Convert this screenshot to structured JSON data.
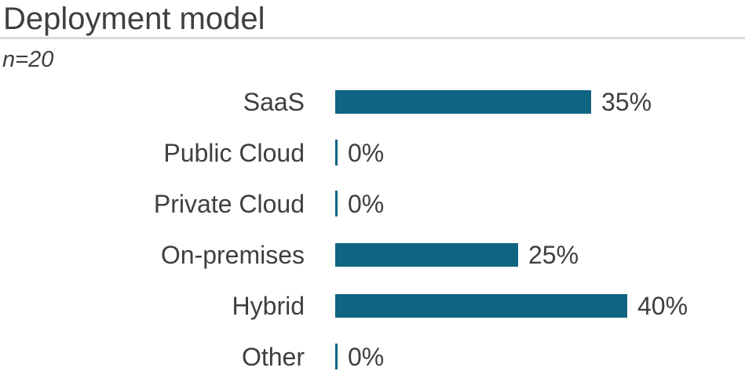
{
  "chart_data": {
    "type": "bar",
    "orientation": "horizontal",
    "title": "Deployment model",
    "subtitle": "n=20",
    "sample_size": 20,
    "categories": [
      "SaaS",
      "Public Cloud",
      "Private Cloud",
      "On-premises",
      "Hybrid",
      "Other"
    ],
    "values": [
      35,
      0,
      0,
      25,
      40,
      0
    ],
    "value_labels": [
      "35%",
      "0%",
      "0%",
      "25%",
      "40%",
      "0%"
    ],
    "unit": "%",
    "axis_visible": false,
    "grid": false,
    "legend": false,
    "zero_shown_as": "tick",
    "colors": {
      "bar": "#0e6481",
      "text": "#3f3f3f",
      "separator": "#d9d9d9"
    }
  }
}
